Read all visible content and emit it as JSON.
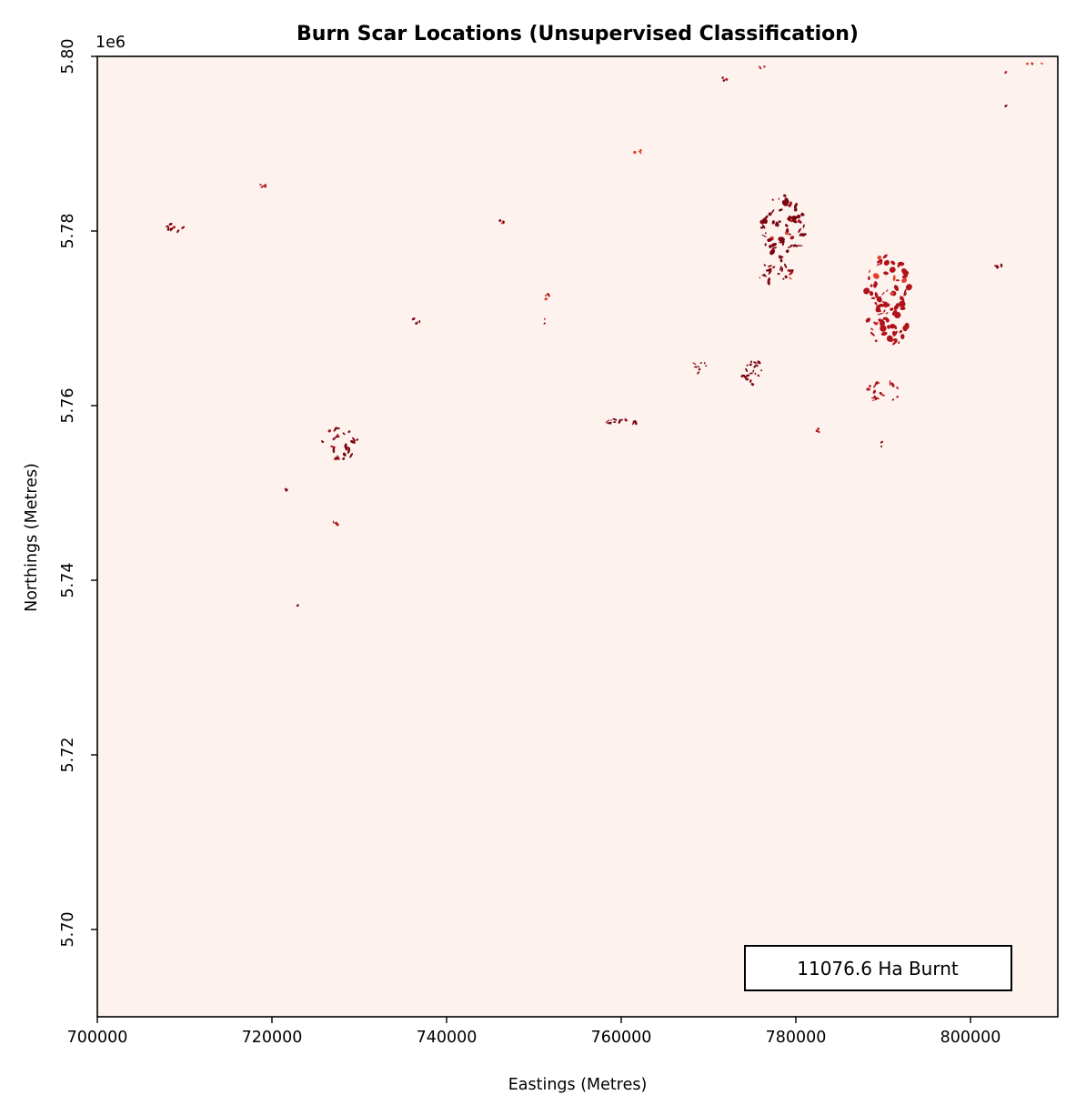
{
  "chart_data": {
    "type": "heatmap",
    "title": "Burn Scar Locations (Unsupervised Classification)",
    "xlabel": "Eastings (Metres)",
    "ylabel": "Northings (Metres)",
    "y_offset_label": "1e6",
    "xlim": [
      700000,
      810000
    ],
    "ylim": [
      5690000,
      5800000
    ],
    "x_ticks": [
      700000,
      720000,
      740000,
      760000,
      780000,
      800000
    ],
    "x_tick_labels": [
      "700000",
      "720000",
      "740000",
      "760000",
      "780000",
      "800000"
    ],
    "y_ticks": [
      5700000,
      5720000,
      5740000,
      5760000,
      5780000,
      5800000
    ],
    "y_tick_labels": [
      "5.70",
      "5.72",
      "5.74",
      "5.76",
      "5.78",
      "5.80"
    ],
    "annotation": "11076.6 Ha Burnt",
    "grid": false,
    "colors": {
      "background": "#fdf2ee",
      "burn_dark": "#7a0510",
      "burn_mid": "#b0121b",
      "burn_light": "#e2402a"
    },
    "burn_patches": [
      {
        "name": "cluster-ne-north",
        "x": 778500,
        "y": 5780300,
        "rx": 2600,
        "ry": 3800,
        "count": 70,
        "tone": "dark"
      },
      {
        "name": "cluster-ne-north-tail",
        "x": 777600,
        "y": 5775200,
        "rx": 2200,
        "ry": 1200,
        "count": 25,
        "tone": "dark"
      },
      {
        "name": "cluster-ne-east",
        "x": 790500,
        "y": 5772000,
        "rx": 2700,
        "ry": 5500,
        "count": 90,
        "tone": "mid"
      },
      {
        "name": "cluster-ne-east-south",
        "x": 790000,
        "y": 5761500,
        "rx": 2000,
        "ry": 1200,
        "count": 22,
        "tone": "mid"
      },
      {
        "name": "cluster-mid",
        "x": 775000,
        "y": 5763800,
        "rx": 1400,
        "ry": 1500,
        "count": 24,
        "tone": "dark"
      },
      {
        "name": "cluster-mid-small",
        "x": 769000,
        "y": 5764400,
        "rx": 800,
        "ry": 700,
        "count": 8,
        "tone": "dark"
      },
      {
        "name": "strip-760",
        "x": 760000,
        "y": 5758100,
        "rx": 1800,
        "ry": 350,
        "count": 14,
        "tone": "dark"
      },
      {
        "name": "cluster-728",
        "x": 727800,
        "y": 5755500,
        "rx": 2200,
        "ry": 2000,
        "count": 26,
        "tone": "dark"
      },
      {
        "name": "patch-709",
        "x": 709000,
        "y": 5780400,
        "rx": 1200,
        "ry": 500,
        "count": 10,
        "tone": "dark"
      },
      {
        "name": "patch-719",
        "x": 718800,
        "y": 5785300,
        "rx": 500,
        "ry": 250,
        "count": 3,
        "tone": "mid"
      },
      {
        "name": "patch-736",
        "x": 736700,
        "y": 5769800,
        "rx": 500,
        "ry": 500,
        "count": 4,
        "tone": "dark"
      },
      {
        "name": "patch-746",
        "x": 746200,
        "y": 5781000,
        "rx": 400,
        "ry": 300,
        "count": 3,
        "tone": "dark"
      },
      {
        "name": "patch-751",
        "x": 751500,
        "y": 5772500,
        "rx": 500,
        "ry": 300,
        "count": 4,
        "tone": "mid"
      },
      {
        "name": "patch-751b",
        "x": 751200,
        "y": 5769700,
        "rx": 200,
        "ry": 300,
        "count": 2,
        "tone": "dark"
      },
      {
        "name": "patch-722",
        "x": 721800,
        "y": 5750400,
        "rx": 500,
        "ry": 300,
        "count": 3,
        "tone": "dark"
      },
      {
        "name": "patch-727b",
        "x": 727200,
        "y": 5746500,
        "rx": 400,
        "ry": 300,
        "count": 3,
        "tone": "mid"
      },
      {
        "name": "patch-723",
        "x": 722800,
        "y": 5737100,
        "rx": 200,
        "ry": 200,
        "count": 2,
        "tone": "dark"
      },
      {
        "name": "patch-771",
        "x": 771800,
        "y": 5797300,
        "rx": 400,
        "ry": 300,
        "count": 3,
        "tone": "dark"
      },
      {
        "name": "patch-776",
        "x": 776000,
        "y": 5798800,
        "rx": 400,
        "ry": 200,
        "count": 3,
        "tone": "mid"
      },
      {
        "name": "patch-782",
        "x": 782600,
        "y": 5757000,
        "rx": 300,
        "ry": 500,
        "count": 3,
        "tone": "mid"
      },
      {
        "name": "patch-789",
        "x": 789700,
        "y": 5755600,
        "rx": 300,
        "ry": 400,
        "count": 3,
        "tone": "dark"
      },
      {
        "name": "patch-803",
        "x": 803000,
        "y": 5776000,
        "rx": 600,
        "ry": 250,
        "count": 4,
        "tone": "dark"
      },
      {
        "name": "patch-804a",
        "x": 804000,
        "y": 5798000,
        "rx": 200,
        "ry": 300,
        "count": 2,
        "tone": "mid"
      },
      {
        "name": "patch-804b",
        "x": 804000,
        "y": 5794400,
        "rx": 200,
        "ry": 250,
        "count": 2,
        "tone": "dark"
      },
      {
        "name": "patch-807",
        "x": 807500,
        "y": 5799000,
        "rx": 1200,
        "ry": 300,
        "count": 5,
        "tone": "light"
      },
      {
        "name": "streak-762",
        "x": 762000,
        "y": 5789200,
        "rx": 1500,
        "ry": 300,
        "count": 5,
        "tone": "light"
      }
    ]
  }
}
